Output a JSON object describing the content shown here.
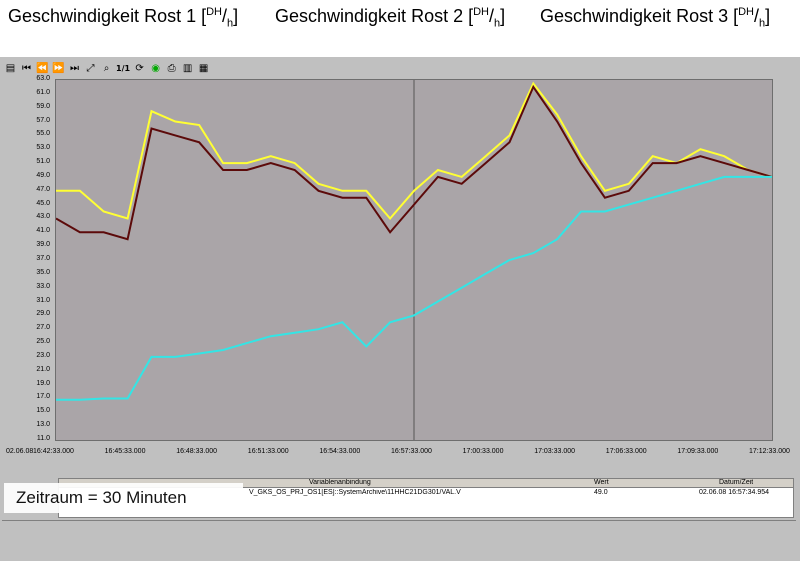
{
  "annotations": [
    {
      "label": "Geschwindigkeit Rost 1 [",
      "sup": "DH",
      "sub": "h"
    },
    {
      "label": "Geschwindigkeit Rost 2 [",
      "sup": "DH",
      "sub": "h"
    },
    {
      "label": "Geschwindigkeit Rost 3 [",
      "sup": "DH",
      "sub": "h"
    }
  ],
  "toolbar": {
    "zoom_label": "1/1"
  },
  "chart_data": {
    "type": "line",
    "ylim": [
      11.0,
      63.0
    ],
    "y_ticks": [
      "63.0",
      "61.0",
      "59.0",
      "57.0",
      "55.0",
      "53.0",
      "51.0",
      "49.0",
      "47.0",
      "45.0",
      "43.0",
      "41.0",
      "39.0",
      "37.0",
      "35.0",
      "33.0",
      "31.0",
      "29.0",
      "27.0",
      "25.0",
      "23.0",
      "21.0",
      "19.0",
      "17.0",
      "15.0",
      "13.0",
      "11.0"
    ],
    "x_ticks": [
      "16:42:33.000",
      "16:45:33.000",
      "16:48:33.000",
      "16:51:33.000",
      "16:54:33.000",
      "16:57:33.000",
      "17:00:33.000",
      "17:03:33.000",
      "17:06:33.000",
      "17:09:33.000",
      "17:12:33.000"
    ],
    "x_start_label": "02.06.08",
    "cursor_time": "16:57:33.000",
    "series": [
      {
        "color": "#ffff33",
        "x": [
          0,
          1,
          2,
          3,
          4,
          5,
          6,
          7,
          8,
          9,
          10,
          11,
          12,
          13,
          14,
          15,
          16,
          17,
          18,
          19,
          20,
          21,
          22,
          23,
          24,
          25,
          26,
          27,
          28,
          29,
          30
        ],
        "values": [
          47,
          47,
          44,
          43,
          58.5,
          57,
          56.5,
          51,
          51,
          52,
          51,
          48,
          47,
          47,
          43,
          47,
          50,
          49,
          52,
          55,
          62.5,
          58,
          52,
          47,
          48,
          52,
          51,
          53,
          52,
          50,
          49
        ]
      },
      {
        "color": "#5c0a0a",
        "x": [
          0,
          1,
          2,
          3,
          4,
          5,
          6,
          7,
          8,
          9,
          10,
          11,
          12,
          13,
          14,
          15,
          16,
          17,
          18,
          19,
          20,
          21,
          22,
          23,
          24,
          25,
          26,
          27,
          28,
          29,
          30
        ],
        "values": [
          43,
          41,
          41,
          40,
          56,
          55,
          54,
          50,
          50,
          51,
          50,
          47,
          46,
          46,
          41,
          45,
          49,
          48,
          51,
          54,
          62,
          57,
          51,
          46,
          47,
          51,
          51,
          52,
          51,
          50,
          49
        ]
      },
      {
        "color": "#33e5e5",
        "x": [
          0,
          1,
          2,
          3,
          4,
          5,
          6,
          7,
          8,
          9,
          10,
          11,
          12,
          13,
          14,
          15,
          16,
          17,
          18,
          19,
          20,
          21,
          22,
          23,
          24,
          25,
          26,
          27,
          28,
          29,
          30
        ],
        "values": [
          16.8,
          16.8,
          17,
          17,
          23,
          23,
          23.5,
          24,
          25,
          26,
          26.5,
          27,
          28,
          24.5,
          28,
          29,
          31,
          33,
          35,
          37,
          38,
          40,
          44,
          44,
          45,
          46,
          47,
          48,
          49,
          49,
          49
        ]
      }
    ]
  },
  "table": {
    "headers": [
      "Variablenanbindung",
      "Wert",
      "Datum/Zeit"
    ],
    "rows": [
      {
        "variable": "V_GKS_OS_PRJ_OS1[ES]::SystemArchive\\11HHC21DG301/VAL.V",
        "wert": "49.0",
        "datum": "02.06.08 16:57:34.954"
      }
    ]
  },
  "zeitraum": "Zeitraum = 30 Minuten"
}
